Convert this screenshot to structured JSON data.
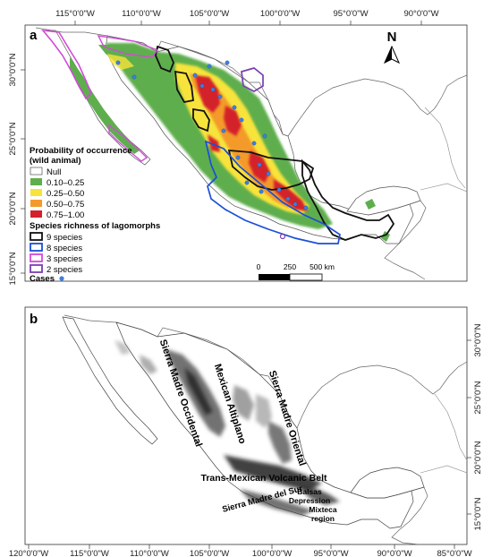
{
  "panel_a": {
    "letter": "a",
    "top_ticks": [
      "115°0'0\"W",
      "110°0'0\"W",
      "105°0'0\"W",
      "100°0'0\"W",
      "95°0'0\"W",
      "90°0'0\"W"
    ],
    "left_ticks": [
      "30°0'0\"N",
      "25°0'0\"N",
      "20°0'0\"N",
      "15°0'0\"N"
    ],
    "north_label": "N",
    "legend": {
      "title_probability": "Probability of occurrence",
      "title_probability_sub": "(wild animal)",
      "probability_items": [
        {
          "label": "Null",
          "color": "#ffffff"
        },
        {
          "label": "0.10–0.25",
          "color": "#5fae4e"
        },
        {
          "label": "0.25–0.50",
          "color": "#f7e33a"
        },
        {
          "label": "0.50–0.75",
          "color": "#f39a2a"
        },
        {
          "label": "0.75–1.00",
          "color": "#d4202a"
        }
      ],
      "title_richness": "Species richness of lagomorphs",
      "richness_items": [
        {
          "label": "9 species",
          "color": "#111111"
        },
        {
          "label": "8 species",
          "color": "#1a4fd8"
        },
        {
          "label": "3 species",
          "color": "#d24ad8"
        },
        {
          "label": "2 species",
          "color": "#7a3fb0"
        }
      ],
      "cases_label": "Cases",
      "cases_color": "#3d7fe0"
    },
    "scale_bar": {
      "labels": [
        "0",
        "250",
        "500 km"
      ]
    }
  },
  "panel_b": {
    "letter": "b",
    "right_ticks": [
      "30°0'0\"N",
      "25°0'0\"N",
      "20°0'0\"N",
      "15°0'0\"N"
    ],
    "bottom_ticks": [
      "120°0'0\"W",
      "115°0'0\"W",
      "110°0'0\"W",
      "105°0'0\"W",
      "100°0'0\"W",
      "95°0'0\"W",
      "90°0'0\"W",
      "85°0'0\"W"
    ],
    "regions": {
      "sierra_madre_occidental": "Sierra Madre Occidental",
      "mexican_altiplano": "Mexican Altiplano",
      "sierra_madre_oriental": "Sierra Madre Oriental",
      "trans_mexican": "Trans-Mexican Volcanic Belt",
      "sierra_madre_sur": "Sierra Madre del Sur",
      "balsas_1": "Balsas",
      "balsas_2": "Depression",
      "mixteca_1": "Mixteca",
      "mixteca_2": "region"
    }
  }
}
